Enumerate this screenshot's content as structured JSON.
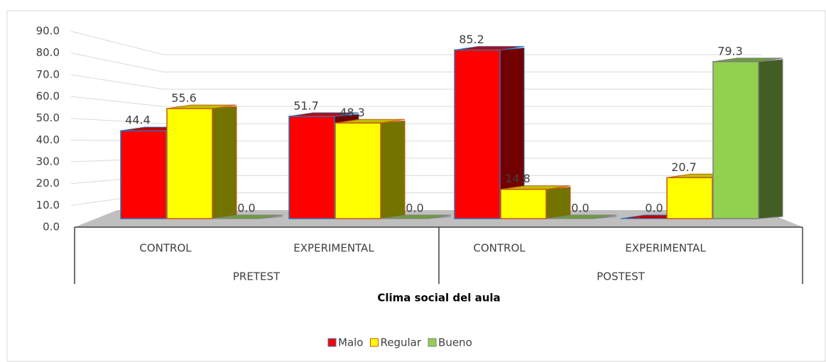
{
  "chart_data": {
    "type": "bar3d",
    "x_title": "Clima social del aula",
    "groups": [
      "PRETEST",
      "POSTEST"
    ],
    "categories": [
      "CONTROL",
      "EXPERIMENTAL",
      "CONTROL",
      "EXPERIMENTAL"
    ],
    "series": [
      {
        "name": "Malo",
        "color": "#ff0000",
        "values": [
          44.4,
          51.7,
          85.2,
          0.0
        ],
        "value_labels": [
          "44.4",
          "51.7",
          "85.2",
          "0.0"
        ]
      },
      {
        "name": "Regular",
        "color": "#ffff00",
        "values": [
          55.6,
          48.3,
          14.8,
          20.7
        ],
        "value_labels": [
          "55.6",
          "48.3",
          "14.8",
          "20.7"
        ]
      },
      {
        "name": "Bueno",
        "color": "#92d050",
        "values": [
          0.0,
          0.0,
          0.0,
          79.3
        ],
        "value_labels": [
          "0.0",
          "0.0",
          "0.0",
          "79.3"
        ]
      }
    ],
    "ylim": [
      0,
      90
    ],
    "yticks": [
      {
        "value": 0,
        "label": "0.0"
      },
      {
        "value": 10,
        "label": "10.0"
      },
      {
        "value": 20,
        "label": "20.0"
      },
      {
        "value": 30,
        "label": "30.0"
      },
      {
        "value": 40,
        "label": "40.0"
      },
      {
        "value": 50,
        "label": "50.0"
      },
      {
        "value": 60,
        "label": "60.0"
      },
      {
        "value": 70,
        "label": "70.0"
      },
      {
        "value": 80,
        "label": "80.0"
      },
      {
        "value": 90,
        "label": "90.0"
      }
    ],
    "grid": true,
    "legend": "bottom"
  }
}
